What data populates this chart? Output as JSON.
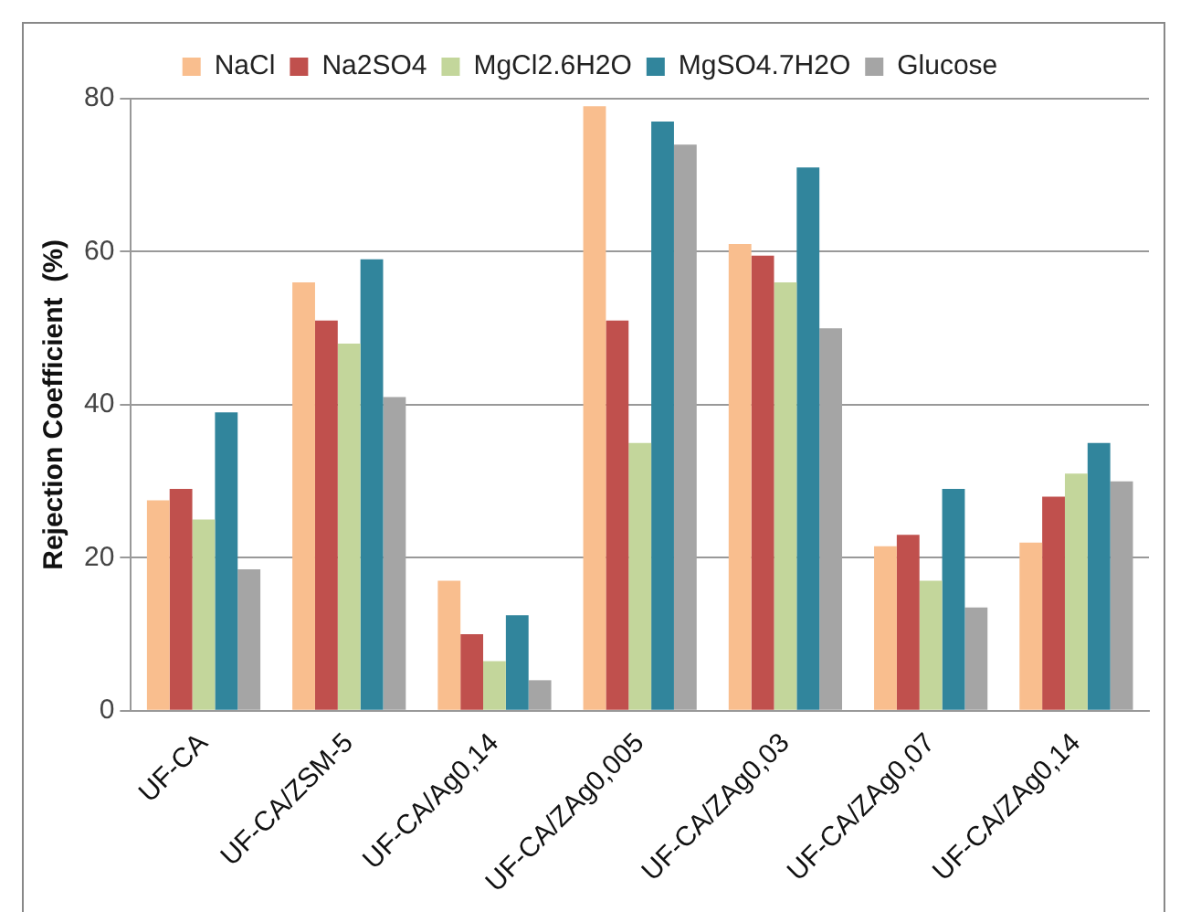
{
  "chart_data": {
    "type": "bar",
    "ylabel": "Rejection Coefficient  (%)",
    "categories": [
      "UF-CA",
      "UF-CA/ZSM-5",
      "UF-CA/Ag0,14",
      "UF-CA/ZAg0,005",
      "UF-CA/ZAg0,03",
      "UF-CA/ZAg0,07",
      "UF-CA/ZAg0,14"
    ],
    "series": [
      {
        "name": "NaCl",
        "color": "#f9be8e",
        "values": [
          27.5,
          56,
          17,
          79,
          61,
          21.5,
          22
        ]
      },
      {
        "name": "Na2SO4",
        "color": "#c0504d",
        "values": [
          29,
          51,
          10,
          51,
          59.5,
          23,
          28
        ]
      },
      {
        "name": "MgCl2.6H2O",
        "color": "#c3d69b",
        "values": [
          25,
          48,
          6.5,
          35,
          56,
          17,
          31
        ]
      },
      {
        "name": "MgSO4.7H2O",
        "color": "#31859c",
        "values": [
          39,
          59,
          12.5,
          77,
          71,
          29,
          35
        ]
      },
      {
        "name": "Glucose",
        "color": "#a5a5a5",
        "values": [
          18.5,
          41,
          4,
          74,
          50,
          13.5,
          30
        ]
      }
    ],
    "ylim": [
      0,
      80
    ],
    "yticks": [
      0,
      20,
      40,
      60,
      80
    ],
    "grid": "y",
    "legend": "top"
  }
}
